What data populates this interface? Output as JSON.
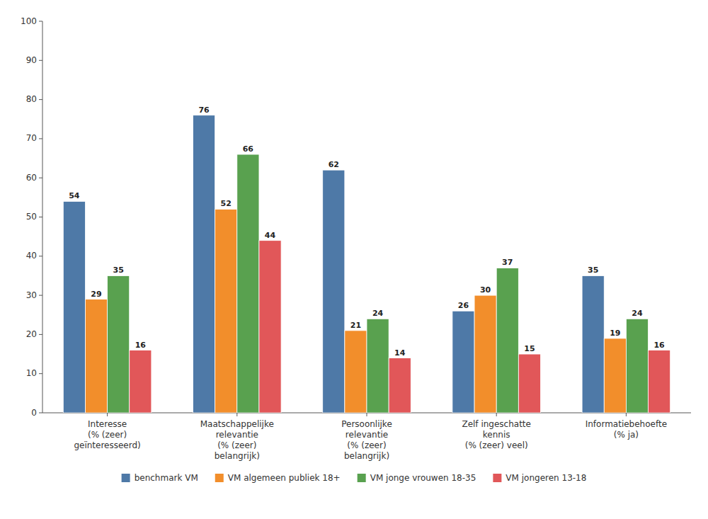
{
  "chart_data": {
    "type": "bar",
    "categories": [
      "Interesse\n(% (zeer)\ngeïnteresseerd)",
      "Maatschappelijke\nrelevantie\n(% (zeer)\nbelangrijk)",
      "Persoonlijke\nrelevantie\n(% (zeer)\nbelangrijk)",
      "Zelf ingeschatte\nkennis\n(% (zeer) veel)",
      "Informatiebehoefte\n(% ja)"
    ],
    "series": [
      {
        "name": "benchmark VM",
        "color": "#4e79a7",
        "values": [
          54,
          76,
          62,
          26,
          35
        ]
      },
      {
        "name": "VM algemeen publiek 18+",
        "color": "#f28e2b",
        "values": [
          29,
          52,
          21,
          30,
          19
        ]
      },
      {
        "name": "VM jonge vrouwen 18-35",
        "color": "#59a14f",
        "values": [
          35,
          66,
          24,
          37,
          24
        ]
      },
      {
        "name": "VM jongeren 13-18",
        "color": "#e15759",
        "values": [
          16,
          44,
          14,
          15,
          16
        ]
      }
    ],
    "ylim": [
      0,
      100
    ],
    "yticks": [
      0,
      10,
      20,
      30,
      40,
      50,
      60,
      70,
      80,
      90,
      100
    ],
    "grid": false,
    "legend": "bottom",
    "data_labels": true
  }
}
